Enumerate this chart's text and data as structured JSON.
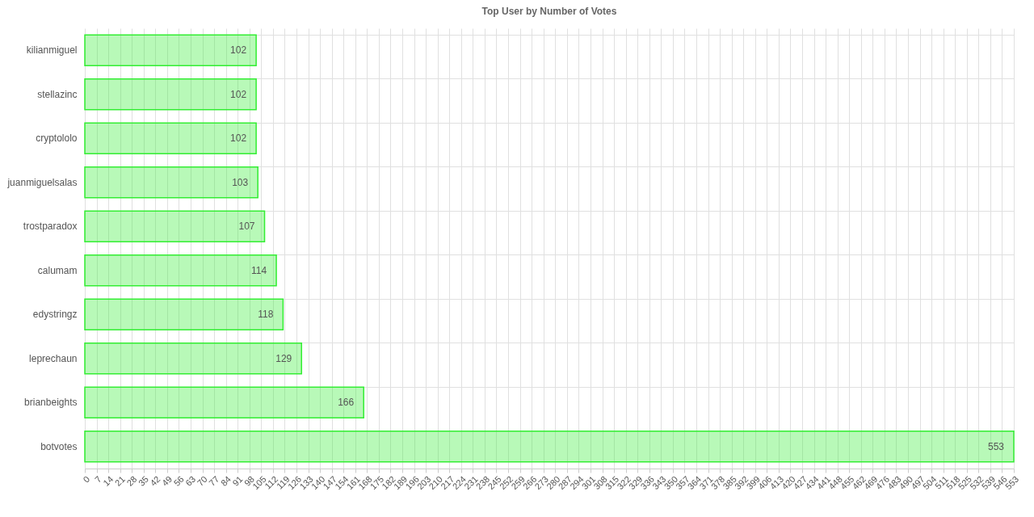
{
  "chart_data": {
    "type": "bar",
    "orientation": "horizontal",
    "title": "Top User by Number of Votes",
    "categories": [
      "kilianmiguel",
      "stellazinc",
      "cryptololo",
      "juanmiguelsalas",
      "trostparadox",
      "calumam",
      "edystringz",
      "leprechaun",
      "brianbeights",
      "botvotes"
    ],
    "values": [
      102,
      102,
      102,
      103,
      107,
      114,
      118,
      129,
      166,
      553
    ],
    "color": "#33ee33",
    "xlim": [
      0,
      553
    ],
    "xticks": [
      0,
      7,
      14,
      21,
      28,
      35,
      42,
      49,
      56,
      63,
      70,
      77,
      84,
      91,
      98,
      105,
      112,
      119,
      126,
      133,
      140,
      147,
      154,
      161,
      168,
      175,
      182,
      189,
      196,
      203,
      210,
      217,
      224,
      231,
      238,
      245,
      252,
      259,
      266,
      273,
      280,
      287,
      294,
      301,
      308,
      315,
      322,
      329,
      336,
      343,
      350,
      357,
      364,
      371,
      378,
      385,
      392,
      399,
      406,
      413,
      420,
      427,
      434,
      441,
      448,
      455,
      462,
      469,
      476,
      483,
      490,
      497,
      504,
      511,
      518,
      525,
      532,
      539,
      546,
      553
    ],
    "grid": true,
    "data_labels": true
  }
}
